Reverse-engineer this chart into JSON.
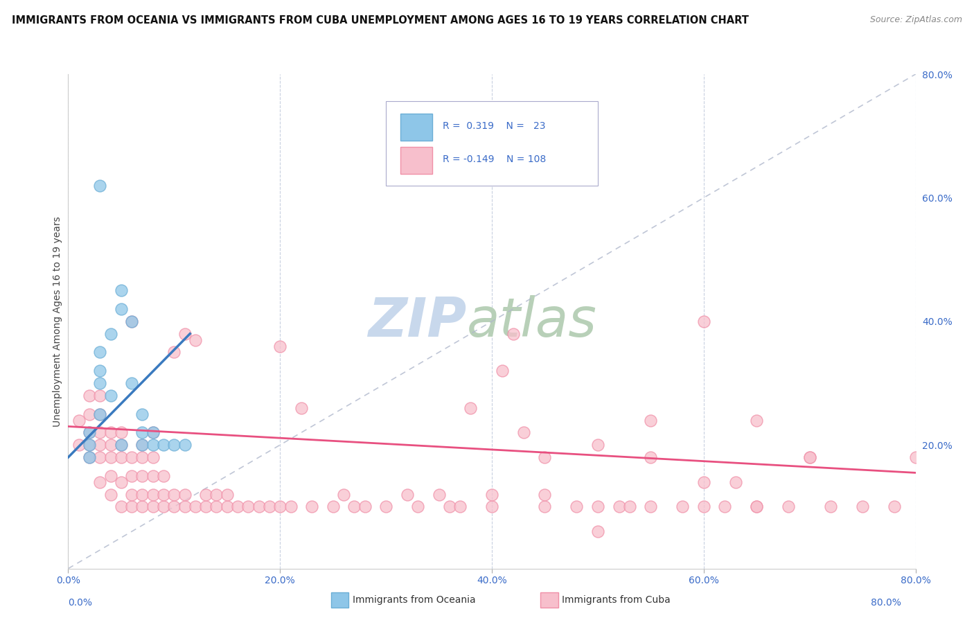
{
  "title": "IMMIGRANTS FROM OCEANIA VS IMMIGRANTS FROM CUBA UNEMPLOYMENT AMONG AGES 16 TO 19 YEARS CORRELATION CHART",
  "source": "Source: ZipAtlas.com",
  "ylabel": "Unemployment Among Ages 16 to 19 years",
  "xlim": [
    0.0,
    0.8
  ],
  "ylim": [
    -0.05,
    0.85
  ],
  "plot_ylim": [
    0.0,
    0.8
  ],
  "xticks": [
    0.0,
    0.2,
    0.4,
    0.6,
    0.8
  ],
  "yticks_right": [
    0.2,
    0.4,
    0.6,
    0.8
  ],
  "xticklabels": [
    "0.0%",
    "20.0%",
    "40.0%",
    "60.0%",
    "80.0%"
  ],
  "yticklabels_right": [
    "20.0%",
    "40.0%",
    "60.0%",
    "80.0%"
  ],
  "color_oceania": "#8ec6e8",
  "color_oceania_edge": "#6baed6",
  "color_cuba": "#f7bfcc",
  "color_cuba_edge": "#f090a8",
  "color_trend_blue": "#3a7abf",
  "color_trend_pink": "#e85080",
  "color_refline": "#b0b8cc",
  "color_axis_labels": "#3a6bc8",
  "background_color": "#ffffff",
  "grid_color": "#c8d0e0",
  "watermark_zip_color": "#c8d8ec",
  "watermark_atlas_color": "#b8d0b8",
  "oceania_x": [
    0.02,
    0.02,
    0.02,
    0.03,
    0.03,
    0.03,
    0.03,
    0.04,
    0.04,
    0.05,
    0.05,
    0.06,
    0.06,
    0.07,
    0.07,
    0.07,
    0.08,
    0.08,
    0.09,
    0.1,
    0.11,
    0.03,
    0.05
  ],
  "oceania_y": [
    0.18,
    0.2,
    0.22,
    0.25,
    0.3,
    0.32,
    0.35,
    0.28,
    0.38,
    0.2,
    0.42,
    0.3,
    0.4,
    0.2,
    0.22,
    0.25,
    0.22,
    0.2,
    0.2,
    0.2,
    0.2,
    0.62,
    0.45
  ],
  "cuba_x": [
    0.01,
    0.01,
    0.02,
    0.02,
    0.02,
    0.02,
    0.02,
    0.03,
    0.03,
    0.03,
    0.03,
    0.03,
    0.03,
    0.04,
    0.04,
    0.04,
    0.04,
    0.04,
    0.05,
    0.05,
    0.05,
    0.05,
    0.05,
    0.06,
    0.06,
    0.06,
    0.06,
    0.06,
    0.07,
    0.07,
    0.07,
    0.07,
    0.07,
    0.08,
    0.08,
    0.08,
    0.08,
    0.08,
    0.09,
    0.09,
    0.09,
    0.1,
    0.1,
    0.1,
    0.11,
    0.11,
    0.11,
    0.12,
    0.12,
    0.13,
    0.13,
    0.14,
    0.14,
    0.15,
    0.15,
    0.16,
    0.17,
    0.18,
    0.19,
    0.2,
    0.21,
    0.22,
    0.23,
    0.25,
    0.26,
    0.27,
    0.28,
    0.3,
    0.32,
    0.33,
    0.35,
    0.36,
    0.37,
    0.38,
    0.4,
    0.41,
    0.42,
    0.43,
    0.45,
    0.45,
    0.48,
    0.5,
    0.5,
    0.52,
    0.53,
    0.55,
    0.55,
    0.58,
    0.6,
    0.6,
    0.62,
    0.63,
    0.65,
    0.65,
    0.68,
    0.7,
    0.72,
    0.75,
    0.78,
    0.8,
    0.55,
    0.6,
    0.65,
    0.7,
    0.4,
    0.45,
    0.5,
    0.2
  ],
  "cuba_y": [
    0.2,
    0.24,
    0.18,
    0.2,
    0.22,
    0.25,
    0.28,
    0.14,
    0.18,
    0.2,
    0.22,
    0.25,
    0.28,
    0.12,
    0.15,
    0.18,
    0.2,
    0.22,
    0.1,
    0.14,
    0.18,
    0.2,
    0.22,
    0.1,
    0.12,
    0.15,
    0.18,
    0.4,
    0.1,
    0.12,
    0.15,
    0.18,
    0.2,
    0.1,
    0.12,
    0.15,
    0.18,
    0.22,
    0.1,
    0.12,
    0.15,
    0.1,
    0.12,
    0.35,
    0.1,
    0.12,
    0.38,
    0.1,
    0.37,
    0.1,
    0.12,
    0.1,
    0.12,
    0.1,
    0.12,
    0.1,
    0.1,
    0.1,
    0.1,
    0.1,
    0.1,
    0.26,
    0.1,
    0.1,
    0.12,
    0.1,
    0.1,
    0.1,
    0.12,
    0.1,
    0.12,
    0.1,
    0.1,
    0.26,
    0.1,
    0.32,
    0.38,
    0.22,
    0.18,
    0.1,
    0.1,
    0.2,
    0.1,
    0.1,
    0.1,
    0.18,
    0.1,
    0.1,
    0.14,
    0.1,
    0.1,
    0.14,
    0.1,
    0.1,
    0.1,
    0.18,
    0.1,
    0.1,
    0.1,
    0.18,
    0.24,
    0.4,
    0.24,
    0.18,
    0.12,
    0.12,
    0.06,
    0.36
  ],
  "blue_trend_x": [
    0.0,
    0.115
  ],
  "blue_trend_y_start": 0.18,
  "blue_trend_y_end": 0.38,
  "pink_trend_x": [
    0.0,
    0.8
  ],
  "pink_trend_y_start": 0.23,
  "pink_trend_y_end": 0.155
}
